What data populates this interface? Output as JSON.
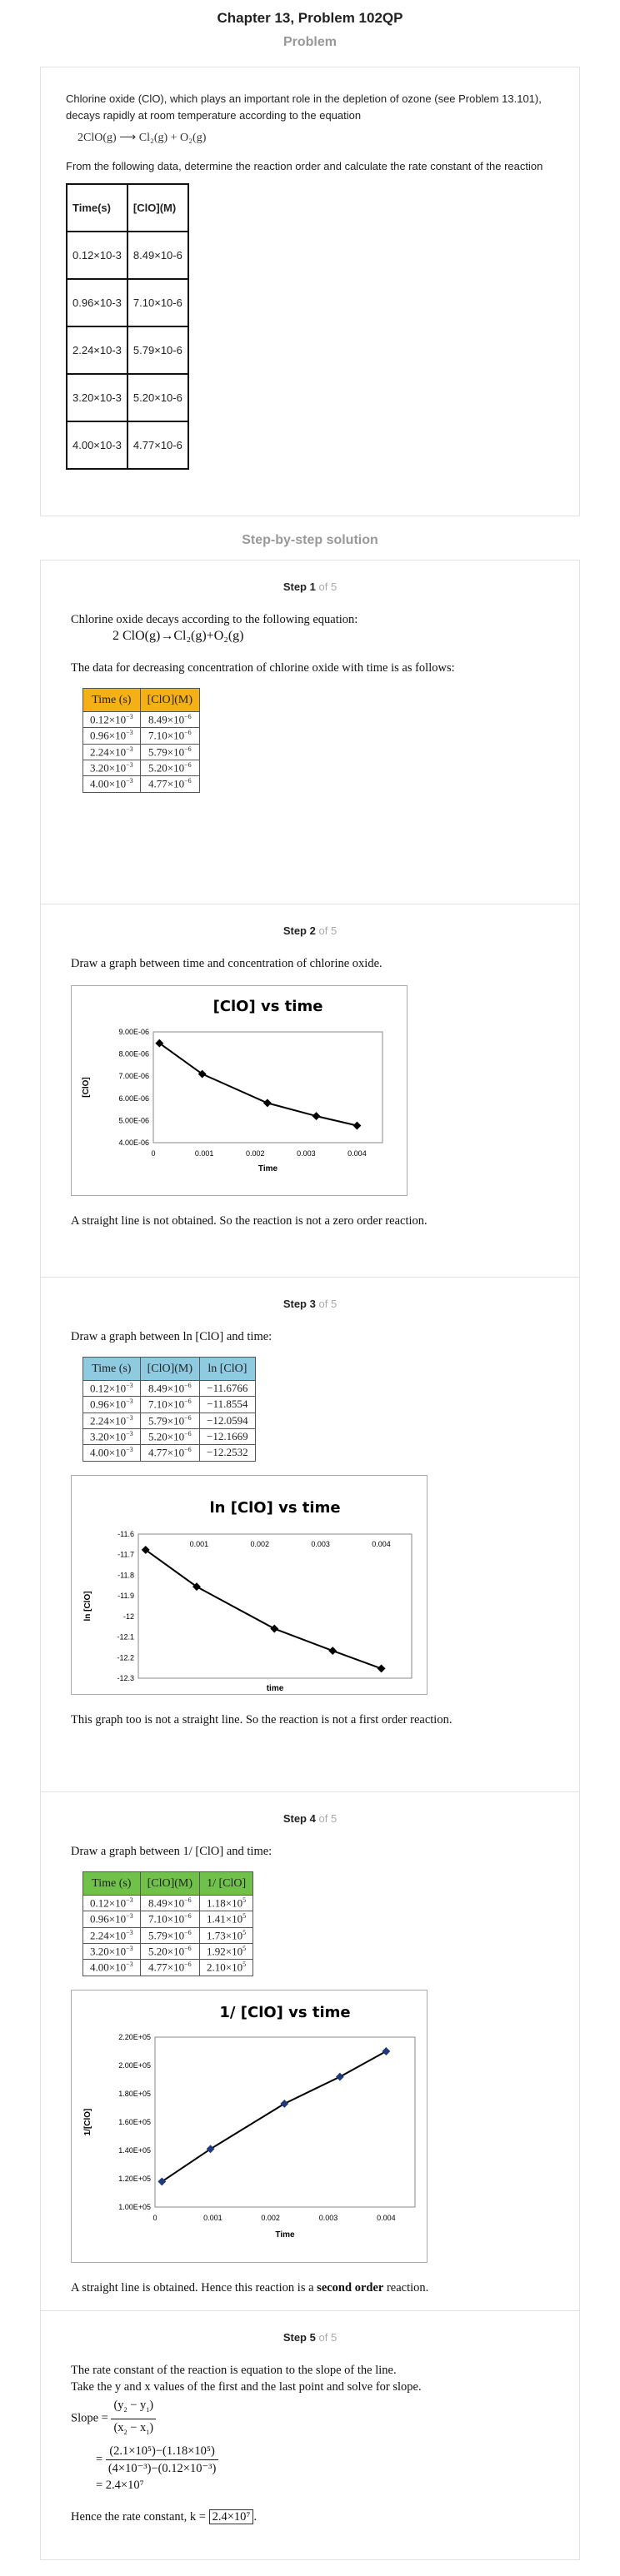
{
  "header": {
    "title": "Chapter 13, Problem 102QP",
    "problem_label": "Problem"
  },
  "problem": {
    "intro": "Chlorine oxide (ClO), which plays an important role in the depletion of ozone (see Problem 13.101), decays rapidly at room temperature according to the equation",
    "equation": "2ClO(g) ⟶ Cl₂(g) + O₂(g)",
    "task": "From the following data, determine the reaction order and calculate the rate constant of the reaction",
    "table": {
      "col1": "Time(s)",
      "col2": "[ClO](M)",
      "rows": [
        [
          "0.12×10-3",
          "8.49×10-6"
        ],
        [
          "0.96×10-3",
          "7.10×10-6"
        ],
        [
          "2.24×10-3",
          "5.79×10-6"
        ],
        [
          "3.20×10-3",
          "5.20×10-6"
        ],
        [
          "4.00×10-3",
          "4.77×10-6"
        ]
      ]
    }
  },
  "solution_label": "Step-by-step solution",
  "step_word": "Step",
  "of_total": "of 5",
  "steps": {
    "s1": {
      "number": "1",
      "line1": "Chlorine oxide decays according to the following equation:",
      "equation": "2 ClO(g)→Cl₂(g)+O₂(g)",
      "line2": "The data for decreasing concentration of chlorine oxide with time is as follows:",
      "col1": "Time (s)",
      "col2": "[ClO](M)"
    },
    "s2": {
      "number": "2",
      "line1": "Draw a graph between time and concentration of chlorine oxide.",
      "line2": "A straight line is not obtained. So the reaction is not a zero order reaction."
    },
    "s3": {
      "number": "3",
      "line1": "Draw a graph between ln [ClO] and time:",
      "col3": "ln [ClO]",
      "line2": "This graph too is not a straight line. So the reaction is not a first order reaction."
    },
    "s4": {
      "number": "4",
      "line1": "Draw a graph between 1/ [ClO] and time:",
      "col3": "1/ [ClO]",
      "line2_a": "A straight line is obtained. Hence this reaction is a ",
      "line2_b": "second order",
      "line2_c": " reaction."
    },
    "s5": {
      "number": "5",
      "line1": "The rate constant of the reaction is equation to the slope of the line.",
      "line2": "Take the y and x values of the first and the last point and solve for slope.",
      "slope_label": "Slope =",
      "eq_sign": "=",
      "num1": "(2.1×10⁵)−(1.18×10⁵)",
      "den1": "(4×10⁻³)−(0.12×10⁻³)",
      "result": "= 2.4×10⁷",
      "final_a": "Hence the rate constant,  k =",
      "final_b": "2.4×10⁷",
      "final_c": "."
    }
  },
  "data_rows": [
    {
      "t": "0.12×10",
      "te": "−3",
      "c": "8.49×10",
      "ce": "−6",
      "ln": "−11.6766",
      "inv": "1.18×10",
      "inve": "5"
    },
    {
      "t": "0.96×10",
      "te": "−3",
      "c": "7.10×10",
      "ce": "−6",
      "ln": "−11.8554",
      "inv": "1.41×10",
      "inve": "5"
    },
    {
      "t": "2.24×10",
      "te": "−3",
      "c": "5.79×10",
      "ce": "−6",
      "ln": "−12.0594",
      "inv": "1.73×10",
      "inve": "5"
    },
    {
      "t": "3.20×10",
      "te": "−3",
      "c": "5.20×10",
      "ce": "−6",
      "ln": "−12.1669",
      "inv": "1.92×10",
      "inve": "5"
    },
    {
      "t": "4.00×10",
      "te": "−3",
      "c": "4.77×10",
      "ce": "−6",
      "ln": "−12.2532",
      "inv": "2.10×10",
      "inve": "5"
    }
  ],
  "chart_data": [
    {
      "type": "line",
      "title": "[ClO] vs time",
      "xlabel": "Time",
      "ylabel": "[ClO]",
      "x": [
        0.00012,
        0.00096,
        0.00224,
        0.0032,
        0.004
      ],
      "y": [
        8.49e-06,
        7.1e-06,
        5.79e-06,
        5.2e-06,
        4.77e-06
      ],
      "xlim": [
        0,
        0.0045
      ],
      "ylim": [
        4e-06,
        9e-06
      ],
      "xticks": [
        "0",
        "0.001",
        "0.002",
        "0.003",
        "0.004"
      ],
      "yticks": [
        "4.00E-06",
        "5.00E-06",
        "6.00E-06",
        "7.00E-06",
        "8.00E-06",
        "9.00E-06"
      ]
    },
    {
      "type": "line",
      "title": "ln [ClO] vs time",
      "xlabel": "time",
      "ylabel": "ln [ClO]",
      "x": [
        0.00012,
        0.00096,
        0.00224,
        0.0032,
        0.004
      ],
      "y": [
        -11.6766,
        -11.8554,
        -12.0594,
        -12.1669,
        -12.2532
      ],
      "xlim": [
        0,
        0.0045
      ],
      "ylim": [
        -12.3,
        -11.6
      ],
      "xticks": [
        "0.001",
        "0.002",
        "0.003",
        "0.004"
      ],
      "yticks": [
        "-11.6",
        "-11.7",
        "-11.8",
        "-11.9",
        "-12",
        "-12.1",
        "-12.2",
        "-12.3"
      ]
    },
    {
      "type": "line",
      "title": "1/ [ClO] vs time",
      "xlabel": "Time",
      "ylabel": "1/[ClO]",
      "x": [
        0.00012,
        0.00096,
        0.00224,
        0.0032,
        0.004
      ],
      "y": [
        118000,
        141000,
        173000,
        192000,
        210000
      ],
      "xlim": [
        0,
        0.0045
      ],
      "ylim": [
        100000,
        220000
      ],
      "xticks": [
        "0",
        "0.001",
        "0.002",
        "0.003",
        "0.004"
      ],
      "yticks": [
        "1.00E+05",
        "1.20E+05",
        "1.40E+05",
        "1.60E+05",
        "1.80E+05",
        "2.00E+05",
        "2.20E+05"
      ]
    }
  ]
}
